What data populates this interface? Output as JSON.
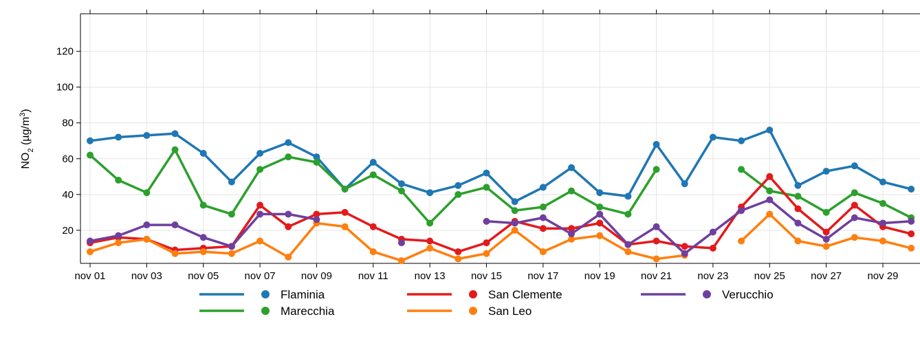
{
  "chart_data": {
    "type": "line",
    "ylabel_parts": [
      "NO",
      "2",
      " (µg/m",
      "3",
      ")"
    ],
    "categories": [
      "nov 01",
      null,
      "nov 03",
      null,
      "nov 05",
      null,
      "nov 07",
      null,
      "nov 09",
      null,
      "nov 11",
      null,
      "nov 13",
      null,
      "nov 15",
      null,
      "nov 17",
      null,
      "nov 19",
      null,
      "nov 21",
      null,
      "nov 23",
      null,
      "nov 25",
      null,
      "nov 27",
      null,
      "nov 29",
      null
    ],
    "series": [
      {
        "name": "Flaminia",
        "color": "#1f77b4",
        "values": [
          70,
          72,
          73,
          74,
          63,
          47,
          63,
          69,
          61,
          43,
          58,
          46,
          41,
          45,
          52,
          36,
          44,
          55,
          41,
          39,
          68,
          46,
          72,
          70,
          76,
          45,
          53,
          56,
          47,
          43
        ]
      },
      {
        "name": "Marecchia",
        "color": "#2ca02c",
        "values": [
          62,
          48,
          41,
          65,
          34,
          29,
          54,
          61,
          58,
          43,
          51,
          42,
          24,
          40,
          44,
          31,
          33,
          42,
          33,
          29,
          54,
          null,
          null,
          54,
          42,
          39,
          30,
          41,
          35,
          27
        ]
      },
      {
        "name": "San Clemente",
        "color": "#e31a1c",
        "values": [
          13,
          16,
          15,
          9,
          10,
          11,
          34,
          22,
          29,
          30,
          22,
          15,
          14,
          8,
          13,
          25,
          21,
          21,
          24,
          12,
          14,
          11,
          10,
          33,
          50,
          32,
          19,
          34,
          22,
          18
        ]
      },
      {
        "name": "San Leo",
        "color": "#ff7f0e",
        "values": [
          8,
          13,
          15,
          7,
          8,
          7,
          14,
          5,
          24,
          22,
          8,
          3,
          10,
          4,
          7,
          20,
          8,
          15,
          17,
          8,
          4,
          6,
          null,
          14,
          29,
          14,
          11,
          16,
          14,
          10
        ]
      },
      {
        "name": "Verucchio",
        "color": "#6f3f9e",
        "values": [
          14,
          17,
          23,
          23,
          16,
          11,
          29,
          29,
          26,
          null,
          null,
          13,
          null,
          null,
          25,
          24,
          27,
          18,
          29,
          12,
          22,
          7,
          19,
          31,
          37,
          24,
          15,
          27,
          24,
          25
        ]
      }
    ],
    "ylim": [
      1.5,
      141
    ],
    "yticks": [
      20,
      40,
      60,
      80,
      100,
      120
    ],
    "grid": true
  }
}
